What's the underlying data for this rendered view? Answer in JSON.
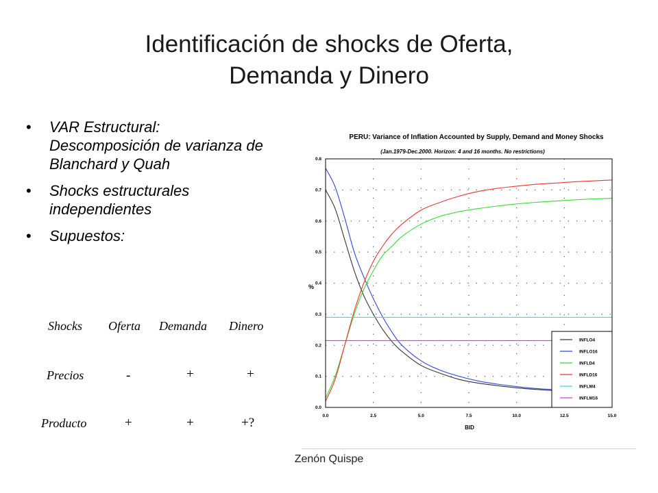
{
  "title": {
    "line1": "Identificación de shocks de Oferta,",
    "line2": "Demanda y Dinero"
  },
  "bullets": [
    "VAR Estructural: Descomposición de varianza de Blanchard y Quah",
    "Shocks estructurales independientes",
    "Supuestos:"
  ],
  "table": {
    "headers": [
      "Shocks",
      "Oferta",
      "Demanda",
      "Dinero"
    ],
    "rows": [
      {
        "label": "Precios",
        "values": [
          "-",
          "+",
          "+"
        ]
      },
      {
        "label": "Producto",
        "values": [
          "+",
          "+",
          "+?"
        ]
      }
    ]
  },
  "footer": "Zenón Quispe",
  "chart_data": {
    "type": "line",
    "title": "PERU: Variance of Inflation Accounted by Supply, Demand and Money Shocks",
    "subtitle": "(Jan.1979-Dec.2000. Horizon: 4 and 16 months. No restrictions)",
    "xlabel": "BID",
    "ylabel": "%",
    "xlim": [
      0,
      15
    ],
    "ylim": [
      0,
      0.8
    ],
    "xticks": [
      "0.0",
      "2.5",
      "5.0",
      "7.5",
      "10.0",
      "12.5",
      "15.0"
    ],
    "yticks": [
      "0.0",
      "0.1",
      "0.2",
      "0.3",
      "0.4",
      "0.5",
      "0.6",
      "0.7",
      "0.8"
    ],
    "grid": true,
    "legend_position": "bottom-right",
    "x": [
      0,
      0.5,
      1,
      1.5,
      2,
      2.5,
      3,
      3.5,
      4,
      5,
      6,
      7,
      8,
      9,
      10,
      11,
      12,
      13,
      14,
      15
    ],
    "series": [
      {
        "name": "INFLO4",
        "color": "#333333",
        "values": [
          0.7,
          0.64,
          0.54,
          0.44,
          0.36,
          0.3,
          0.25,
          0.21,
          0.18,
          0.135,
          0.11,
          0.09,
          0.078,
          0.07,
          0.063,
          0.058,
          0.054,
          0.051,
          0.048,
          0.046
        ]
      },
      {
        "name": "INFLO16",
        "color": "#3344dd",
        "values": [
          0.77,
          0.71,
          0.61,
          0.5,
          0.42,
          0.35,
          0.29,
          0.24,
          0.2,
          0.15,
          0.12,
          0.1,
          0.085,
          0.075,
          0.067,
          0.061,
          0.057,
          0.053,
          0.05,
          0.048
        ]
      },
      {
        "name": "INFLD4",
        "color": "#33dd33",
        "values": [
          0.03,
          0.1,
          0.2,
          0.3,
          0.38,
          0.44,
          0.49,
          0.52,
          0.55,
          0.59,
          0.615,
          0.63,
          0.64,
          0.648,
          0.655,
          0.66,
          0.664,
          0.668,
          0.671,
          0.673
        ]
      },
      {
        "name": "INFLD16",
        "color": "#ee3333",
        "values": [
          0.02,
          0.09,
          0.2,
          0.31,
          0.4,
          0.47,
          0.52,
          0.56,
          0.59,
          0.635,
          0.66,
          0.68,
          0.695,
          0.705,
          0.712,
          0.718,
          0.722,
          0.726,
          0.729,
          0.732
        ]
      },
      {
        "name": "INFLM4",
        "color": "#33dddd",
        "values": [
          0.29,
          0.29,
          0.29,
          0.29,
          0.29,
          0.29,
          0.29,
          0.29,
          0.29,
          0.29,
          0.29,
          0.29,
          0.29,
          0.29,
          0.29,
          0.29,
          0.29,
          0.29,
          0.29,
          0.29
        ]
      },
      {
        "name": "INFLM16",
        "color": "#dd33dd",
        "values": [
          0.215,
          0.215,
          0.215,
          0.215,
          0.215,
          0.215,
          0.215,
          0.215,
          0.215,
          0.215,
          0.215,
          0.215,
          0.215,
          0.215,
          0.215,
          0.215,
          0.215,
          0.215,
          0.215,
          0.215
        ]
      }
    ]
  }
}
